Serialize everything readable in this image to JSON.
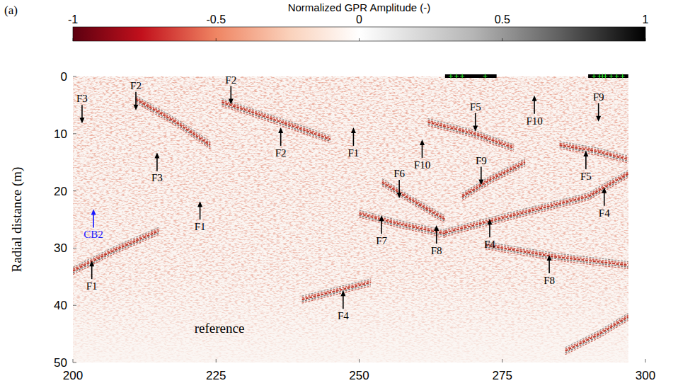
{
  "chart_data": {
    "type": "radargram",
    "panel_label": "(a)",
    "colorbar": {
      "title": "Normalized GPR Amplitude (-)",
      "range": [
        -1,
        1
      ],
      "ticks": [
        -1,
        -0.5,
        0,
        0.5,
        1
      ]
    },
    "y_label": "Radial distance (m)",
    "xlim": [
      200,
      300
    ],
    "xticks": [
      200,
      225,
      250,
      275,
      300
    ],
    "ylim": [
      0,
      50
    ],
    "yticks": [
      0,
      10,
      20,
      30,
      40,
      50
    ],
    "image_x_extent": [
      200,
      297
    ],
    "surface_segments": [
      {
        "x": [
          265,
          274
        ],
        "markers": [
          266,
          267,
          268,
          272
        ]
      },
      {
        "x": [
          290,
          297
        ],
        "markers": [
          291,
          292,
          292.5,
          293,
          294,
          295,
          296
        ]
      }
    ],
    "reflectors": [
      {
        "x": [
          226,
          235,
          245
        ],
        "values": [
          4.5,
          7.5,
          11
        ],
        "color": "#c0392b"
      },
      {
        "x": [
          211,
          218,
          224
        ],
        "values": [
          4,
          8,
          12
        ],
        "color": "#c0392b"
      },
      {
        "x": [
          254,
          259,
          265
        ],
        "values": [
          18.5,
          21.5,
          25
        ],
        "color": "#c0392b"
      },
      {
        "x": [
          250,
          257,
          265
        ],
        "values": [
          24,
          25.8,
          27.5
        ],
        "color": "#c0392b"
      },
      {
        "x": [
          265,
          278,
          290,
          297
        ],
        "values": [
          27.3,
          24,
          21,
          17
        ],
        "color": "#c0392b"
      },
      {
        "x": [
          262,
          270,
          277
        ],
        "values": [
          8,
          10,
          12.5
        ],
        "color": "#c0392b"
      },
      {
        "x": [
          285,
          291,
          297
        ],
        "values": [
          12,
          13,
          14.5
        ],
        "color": "#c0392b"
      },
      {
        "x": [
          268,
          273,
          279
        ],
        "values": [
          21,
          18,
          15
        ],
        "color": "#c0392b"
      },
      {
        "x": [
          272,
          284,
          297
        ],
        "values": [
          29.5,
          31.5,
          33
        ],
        "color": "#c0392b"
      },
      {
        "x": [
          240,
          246,
          252
        ],
        "values": [
          39,
          37.5,
          36
        ],
        "color": "#c0392b"
      },
      {
        "x": [
          200,
          207,
          215
        ],
        "values": [
          34,
          30.5,
          27
        ],
        "color": "#c0392b"
      },
      {
        "x": [
          286,
          292,
          297
        ],
        "values": [
          48,
          45,
          42
        ],
        "color": "#c0392b"
      }
    ],
    "annotations": [
      {
        "label": "F3",
        "x": 201.6,
        "y": 8.2,
        "direction": "down",
        "color": "#000000"
      },
      {
        "label": "F2",
        "x": 211,
        "y": 5.9,
        "direction": "down",
        "color": "#000000"
      },
      {
        "label": "F2",
        "x": 227.6,
        "y": 4.9,
        "direction": "down",
        "color": "#000000"
      },
      {
        "label": "F3",
        "x": 214.7,
        "y": 13.3,
        "direction": "up",
        "color": "#000000"
      },
      {
        "label": "F2",
        "x": 236.3,
        "y": 8.9,
        "direction": "up",
        "color": "#000000"
      },
      {
        "label": "F1",
        "x": 249,
        "y": 8.9,
        "direction": "up",
        "color": "#000000"
      },
      {
        "label": "F1",
        "x": 222.2,
        "y": 21.8,
        "direction": "up",
        "color": "#000000"
      },
      {
        "label": "CB2",
        "x": 203.6,
        "y": 23.2,
        "direction": "up",
        "color": "#1a1aff"
      },
      {
        "label": "F1",
        "x": 203.3,
        "y": 32.2,
        "direction": "up",
        "color": "#000000"
      },
      {
        "label": "F10",
        "x": 261,
        "y": 11,
        "direction": "up",
        "color": "#000000"
      },
      {
        "label": "F6",
        "x": 257,
        "y": 21.3,
        "direction": "down",
        "color": "#000000"
      },
      {
        "label": "F7",
        "x": 253.9,
        "y": 24.3,
        "direction": "up",
        "color": "#000000"
      },
      {
        "label": "F8",
        "x": 263.5,
        "y": 26,
        "direction": "up",
        "color": "#000000"
      },
      {
        "label": "F4",
        "x": 272.8,
        "y": 24.9,
        "direction": "up",
        "color": "#000000"
      },
      {
        "label": "F4",
        "x": 247.2,
        "y": 37.4,
        "direction": "up",
        "color": "#000000"
      },
      {
        "label": "F5",
        "x": 270.3,
        "y": 9.6,
        "direction": "down",
        "color": "#000000"
      },
      {
        "label": "F9",
        "x": 271.3,
        "y": 19,
        "direction": "down",
        "color": "#000000"
      },
      {
        "label": "F10",
        "x": 280.6,
        "y": 3.3,
        "direction": "up",
        "color": "#000000"
      },
      {
        "label": "F9",
        "x": 291.8,
        "y": 7.9,
        "direction": "down",
        "color": "#000000"
      },
      {
        "label": "F5",
        "x": 289.6,
        "y": 13,
        "direction": "up",
        "color": "#000000"
      },
      {
        "label": "F4",
        "x": 292.8,
        "y": 19.4,
        "direction": "up",
        "color": "#000000"
      },
      {
        "label": "F8",
        "x": 283.2,
        "y": 31.2,
        "direction": "up",
        "color": "#000000"
      }
    ],
    "text_annotations": [
      {
        "label": "reference",
        "x": 225.6,
        "y": 44
      }
    ]
  }
}
